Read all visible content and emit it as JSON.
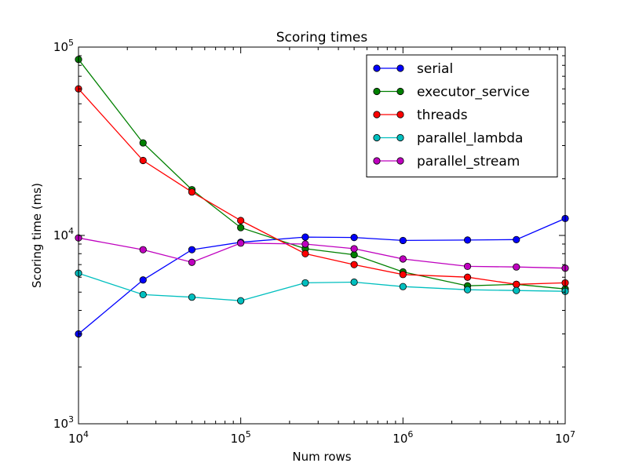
{
  "chart_data": {
    "type": "line",
    "title": "Scoring times",
    "xlabel": "Num rows",
    "ylabel": "Scoring time (ms)",
    "x_scale": "log",
    "y_scale": "log",
    "xlim": [
      10000,
      10000000
    ],
    "ylim": [
      1000,
      100000
    ],
    "grid": false,
    "legend_position": "top-right",
    "x_ticks": [
      {
        "value": 10000,
        "base": "10",
        "exp": "4"
      },
      {
        "value": 100000,
        "base": "10",
        "exp": "5"
      },
      {
        "value": 1000000,
        "base": "10",
        "exp": "6"
      },
      {
        "value": 10000000,
        "base": "10",
        "exp": "7"
      }
    ],
    "y_ticks": [
      {
        "value": 1000,
        "base": "10",
        "exp": "3"
      },
      {
        "value": 10000,
        "base": "10",
        "exp": "4"
      },
      {
        "value": 100000,
        "base": "10",
        "exp": "5"
      }
    ],
    "x": [
      10000,
      25000,
      50000,
      100000,
      250000,
      500000,
      1000000,
      2500000,
      5000000,
      10000000
    ],
    "series": [
      {
        "name": "serial",
        "color": "#0000ff",
        "values": [
          3000,
          5800,
          8400,
          9200,
          9800,
          9750,
          9400,
          9450,
          9500,
          12300
        ]
      },
      {
        "name": "executor_service",
        "color": "#008000",
        "values": [
          86000,
          31000,
          17500,
          11000,
          8500,
          7900,
          6400,
          5400,
          5500,
          5200
        ]
      },
      {
        "name": "threads",
        "color": "#ff0000",
        "values": [
          60000,
          25000,
          17000,
          12000,
          8000,
          7000,
          6200,
          6000,
          5500,
          5600
        ]
      },
      {
        "name": "parallel_lambda",
        "color": "#00bfbf",
        "values": [
          6300,
          4850,
          4700,
          4500,
          5600,
          5650,
          5350,
          5150,
          5100,
          5050
        ]
      },
      {
        "name": "parallel_stream",
        "color": "#bf00bf",
        "values": [
          9700,
          8400,
          7200,
          9100,
          9000,
          8500,
          7500,
          6850,
          6800,
          6700
        ]
      }
    ]
  }
}
